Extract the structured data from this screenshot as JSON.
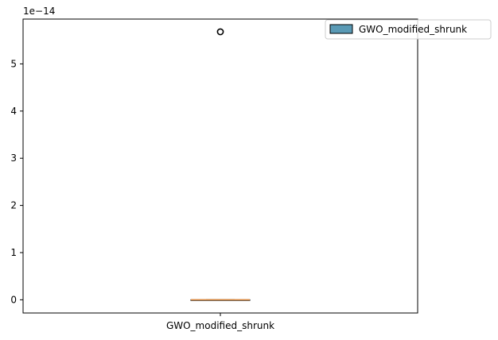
{
  "chart_data": {
    "type": "box",
    "title": "",
    "xlabel": "",
    "ylabel": "",
    "y_offset_label": "1e−14",
    "y_scale": 1e-14,
    "ylim": [
      -0.28,
      5.95
    ],
    "yticks": [
      0,
      1,
      2,
      3,
      4,
      5
    ],
    "ytick_labels": [
      "0",
      "1",
      "2",
      "3",
      "4",
      "5"
    ],
    "categories": [
      "GWO_modified_shrunk"
    ],
    "series": [
      {
        "name": "GWO_modified_shrunk",
        "whisker_low": 0,
        "q1": 0,
        "median": 0,
        "q3": 0,
        "whisker_high": 0,
        "outliers": [
          5.68
        ],
        "box_color": "#5a9ab5",
        "median_color": "#e08a3c"
      }
    ],
    "legend": {
      "position": "top-right",
      "entries": [
        {
          "label": "GWO_modified_shrunk",
          "color": "#5a9ab5"
        }
      ]
    }
  }
}
